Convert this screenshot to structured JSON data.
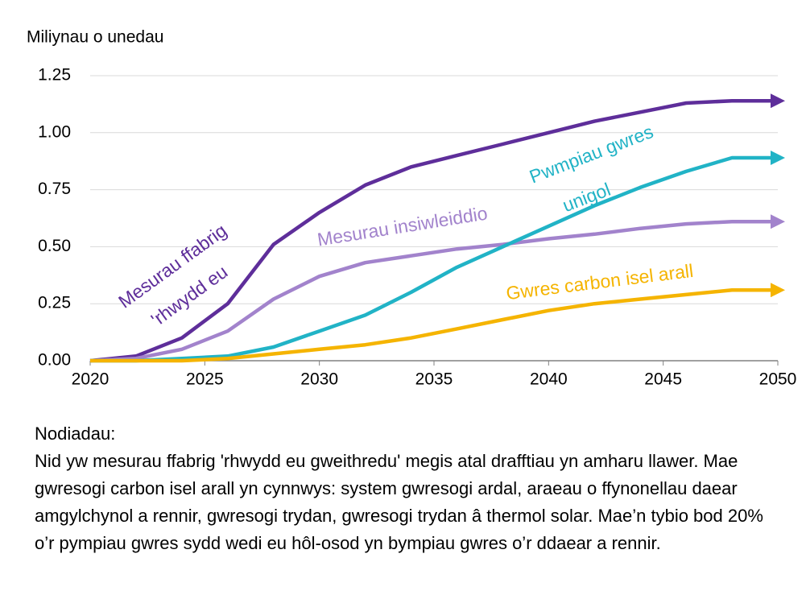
{
  "chart_data": {
    "type": "line",
    "y_label": "Miliynau o unedau",
    "x": [
      2020,
      2022,
      2024,
      2026,
      2028,
      2030,
      2032,
      2034,
      2036,
      2038,
      2040,
      2042,
      2044,
      2046,
      2048,
      2050
    ],
    "series": [
      {
        "name": "Mesurau ffabrig 'rhwydd eu",
        "color": "#5e2e9a",
        "values": [
          0,
          0.02,
          0.1,
          0.25,
          0.51,
          0.65,
          0.77,
          0.85,
          0.9,
          0.95,
          1.0,
          1.05,
          1.09,
          1.13,
          1.14,
          1.14
        ]
      },
      {
        "name": "Mesurau insiwleiddio",
        "color": "#a283cc",
        "values": [
          0,
          0.01,
          0.05,
          0.13,
          0.27,
          0.37,
          0.43,
          0.46,
          0.49,
          0.51,
          0.535,
          0.555,
          0.58,
          0.6,
          0.61,
          0.61
        ]
      },
      {
        "name": "Pwmpiau gwres unigol",
        "color": "#21b3c6",
        "values": [
          0,
          0,
          0.01,
          0.02,
          0.06,
          0.13,
          0.2,
          0.3,
          0.41,
          0.5,
          0.59,
          0.68,
          0.76,
          0.83,
          0.89,
          0.89
        ]
      },
      {
        "name": "Gwres carbon isel arall",
        "color": "#f5b400",
        "values": [
          0,
          0,
          0,
          0.01,
          0.03,
          0.05,
          0.07,
          0.1,
          0.14,
          0.18,
          0.22,
          0.25,
          0.27,
          0.29,
          0.31,
          0.31
        ]
      }
    ],
    "xlim": [
      2020,
      2050
    ],
    "xticks": [
      2020,
      2025,
      2030,
      2035,
      2040,
      2045,
      2050
    ],
    "ylim": [
      0,
      1.25
    ],
    "yticks": [
      {
        "value": 0,
        "label": "0.00"
      },
      {
        "value": 0.25,
        "label": "0.25"
      },
      {
        "value": 0.5,
        "label": "0.50"
      },
      {
        "value": 0.75,
        "label": "0.75"
      },
      {
        "value": 1,
        "label": "1.00"
      },
      {
        "value": 1.25,
        "label": "1.25"
      }
    ],
    "grid": true,
    "notes_title": "Nodiadau:",
    "notes": "Nid yw mesurau ffabrig 'rhwydd eu gweithredu' megis atal drafftiau yn amharu llawer. Mae gwresogi carbon isel arall yn cynnwys: system gwresogi ardal, araeau o ffynonellau daear amgylchynol a rennir, gwresogi trydan, gwresogi trydan â thermol solar. Mae’n tybio bod 20% o’r pympiau gwres sydd wedi eu hôl-osod yn bympiau gwres o’r ddaear a rennir."
  }
}
